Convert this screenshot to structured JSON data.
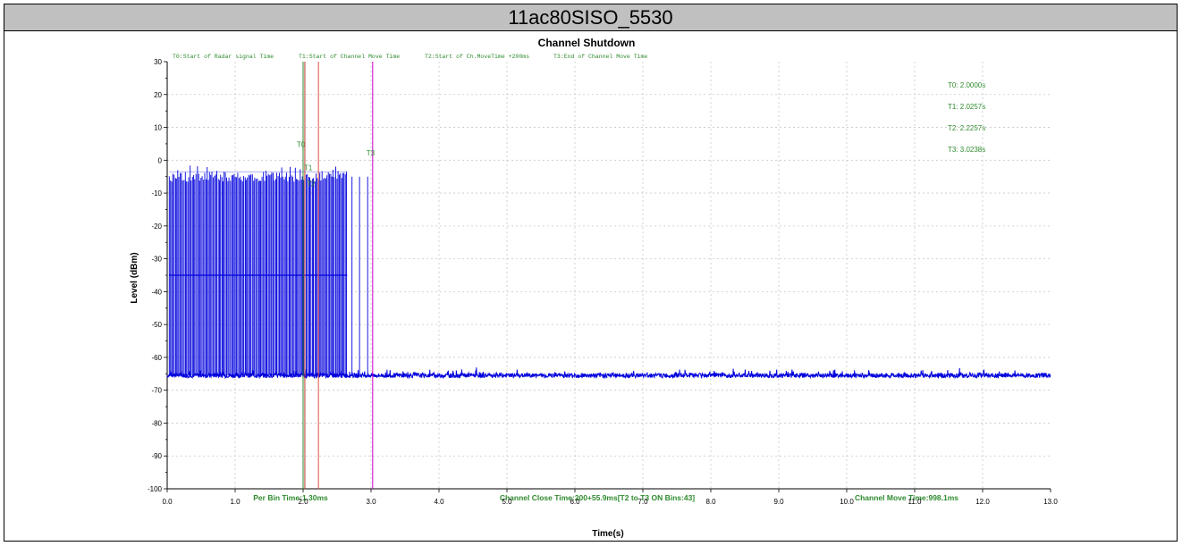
{
  "header": {
    "title": "11ac80SISO_5530"
  },
  "chart_data": {
    "type": "line",
    "title": "Channel Shutdown",
    "xlabel": "Time(s)",
    "ylabel": "Level (dBm)",
    "xlim": [
      0,
      13
    ],
    "ylim": [
      -100,
      30
    ],
    "x_ticks": [
      "0.0",
      "1.0",
      "2.0",
      "3.0",
      "4.0",
      "5.0",
      "6.0",
      "7.0",
      "8.0",
      "9.0",
      "10.0",
      "11.0",
      "12.0",
      "13.0"
    ],
    "y_ticks": [
      "30",
      "20",
      "10",
      "0",
      "-10",
      "-20",
      "-30",
      "-40",
      "-50",
      "-60",
      "-70",
      "-80",
      "-90",
      "-100"
    ],
    "grid": true,
    "legend_notes": [
      "T0:Start of Radar signal Time",
      "T1:Start of Channel Move Time",
      "T2:Start of Ch.MoveTime +200ms",
      "T3:End of Channel Move Time"
    ],
    "markers": [
      {
        "label": "T0",
        "time": 2.0,
        "readout": "T0: 2.0000s",
        "color": "#2e8b2e"
      },
      {
        "label": "T1",
        "time": 2.0257,
        "readout": "T1: 2.0257s",
        "color": "#c0392b"
      },
      {
        "label": "T2",
        "time": 2.2257,
        "readout": "T2: 2.2257s",
        "color": "#e05040"
      },
      {
        "label": "T3",
        "time": 3.0238,
        "readout": "T3: 3.0238s",
        "color": "#cc00cc"
      }
    ],
    "series": [
      {
        "values_description_free": true,
        "noise_floor": -65.5,
        "burst_top": -3.5,
        "mid_level": -35,
        "burst_region": [
          0.03,
          2.65
        ],
        "late_pulses": [
          2.72,
          2.83,
          2.95
        ],
        "color": "#0000dd"
      }
    ],
    "footer": {
      "per_bin": "Per Bin Time:1.30ms",
      "close_time": "Channel Close Time:200+55.9ms[T2 to T3 ON Bins:43]",
      "move_time": "Channel Move Time:998.1ms"
    }
  }
}
